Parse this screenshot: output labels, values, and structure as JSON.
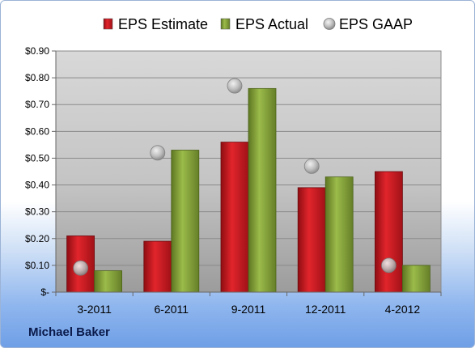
{
  "chart_data": {
    "type": "bar",
    "categories": [
      "3-2011",
      "6-2011",
      "9-2011",
      "12-2011",
      "4-2012"
    ],
    "series": [
      {
        "name": "EPS Estimate",
        "kind": "bar",
        "color": "#c0141b",
        "values": [
          0.21,
          0.19,
          0.56,
          0.39,
          0.45
        ]
      },
      {
        "name": "EPS Actual",
        "kind": "bar",
        "color": "#7e9b32",
        "values": [
          0.08,
          0.53,
          0.76,
          0.43,
          0.1
        ]
      },
      {
        "name": "EPS GAAP",
        "kind": "marker",
        "color": "#b8b8b8",
        "values": [
          0.09,
          0.52,
          0.77,
          0.47,
          0.1
        ]
      }
    ],
    "ylim": [
      0,
      0.9
    ],
    "yticks": [
      0,
      0.1,
      0.2,
      0.3,
      0.4,
      0.5,
      0.6,
      0.7,
      0.8,
      0.9
    ],
    "ytick_labels": [
      "$-",
      "$0.10",
      "$0.20",
      "$0.30",
      "$0.40",
      "$0.50",
      "$0.60",
      "$0.70",
      "$0.80",
      "$0.90"
    ],
    "grid": true,
    "legend_position": "top"
  },
  "watermark": "Michael Baker"
}
